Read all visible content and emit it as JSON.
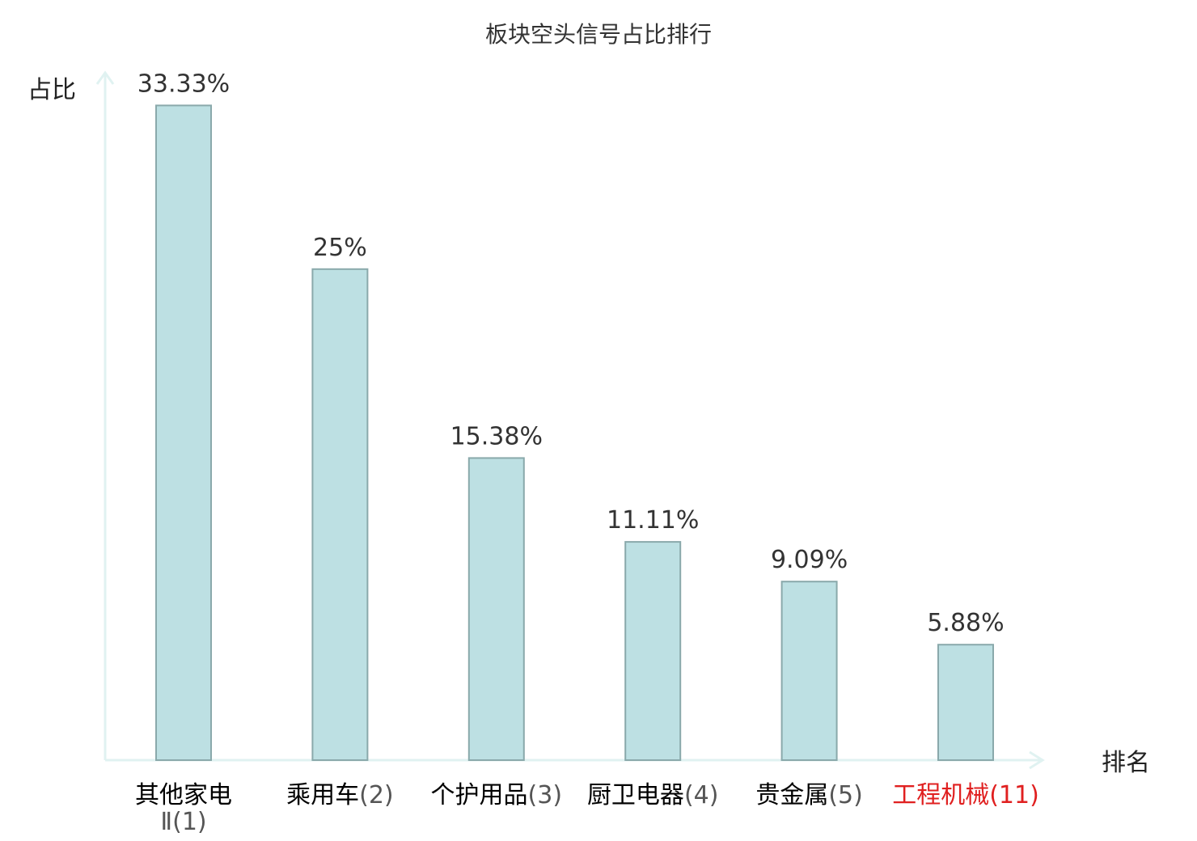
{
  "chart_data": {
    "type": "bar",
    "title": "板块空头信号占比排行",
    "ylabel": "占比",
    "xlabel": "排名",
    "ylim": [
      0,
      34.5
    ],
    "grid": false,
    "legend": "none",
    "categories": [
      {
        "name": "其他家电",
        "name2": "Ⅱ",
        "rank": "(1)",
        "value": 33.33,
        "label": "33.33%",
        "color": "#000000",
        "rank_color": "#555555"
      },
      {
        "name": "乘用车",
        "rank": "(2)",
        "value": 25,
        "label": "25%",
        "color": "#000000",
        "rank_color": "#555555"
      },
      {
        "name": "个护用品",
        "rank": "(3)",
        "value": 15.38,
        "label": "15.38%",
        "color": "#000000",
        "rank_color": "#555555"
      },
      {
        "name": "厨卫电器",
        "rank": "(4)",
        "value": 11.11,
        "label": "11.11%",
        "color": "#000000",
        "rank_color": "#555555"
      },
      {
        "name": "贵金属",
        "rank": "(5)",
        "value": 9.09,
        "label": "9.09%",
        "color": "#000000",
        "rank_color": "#555555"
      },
      {
        "name": "工程机械",
        "rank": "(11)",
        "value": 5.88,
        "label": "5.88%",
        "color": "#e02020",
        "rank_color": "#e02020"
      }
    ],
    "colors": {
      "bar_fill": "#bde0e3",
      "bar_stroke": "#8aa9ab",
      "axis": "#e0f2f1"
    }
  }
}
